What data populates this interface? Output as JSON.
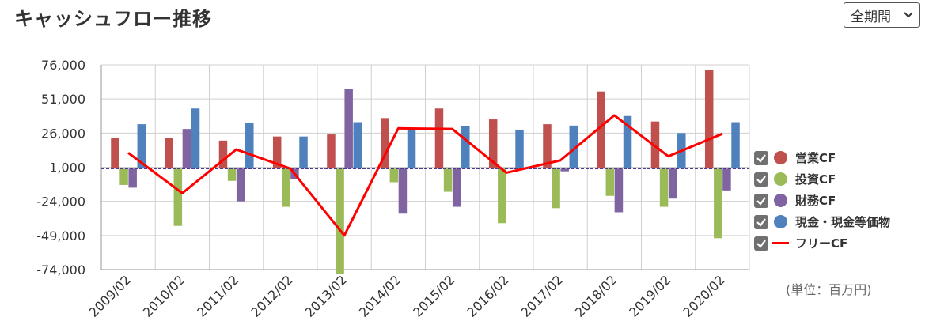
{
  "header": {
    "title": "キャッシュフロー推移"
  },
  "period_select": {
    "label": "全期間"
  },
  "unit_label": "(単位：百万円)",
  "chart_data": {
    "type": "bar",
    "title": "キャッシュフロー推移",
    "categories": [
      "2009/02",
      "2010/02",
      "2011/02",
      "2012/02",
      "2013/02",
      "2014/02",
      "2015/02",
      "2016/02",
      "2017/02",
      "2018/02",
      "2019/02",
      "2020/02"
    ],
    "series": [
      {
        "name": "営業CF",
        "kind": "bar",
        "color": "#c0504d",
        "values": [
          22500,
          22500,
          20500,
          23500,
          25000,
          37000,
          44000,
          36000,
          32500,
          56500,
          34500,
          72000
        ]
      },
      {
        "name": "投資CF",
        "kind": "bar",
        "color": "#9bbb59",
        "values": [
          -12000,
          -42000,
          -9000,
          -28000,
          -77000,
          -10000,
          -17000,
          -40000,
          -29000,
          -20000,
          -28000,
          -51000
        ]
      },
      {
        "name": "財務CF",
        "kind": "bar",
        "color": "#8064a2",
        "values": [
          -14000,
          29000,
          -24000,
          -8000,
          58500,
          -33000,
          -28000,
          0,
          -2000,
          -32000,
          -22000,
          -16000
        ]
      },
      {
        "name": "現金・現金等価物",
        "kind": "bar",
        "color": "#4f81bd",
        "values": [
          32500,
          44000,
          33500,
          23500,
          34000,
          30000,
          31000,
          28000,
          31500,
          38500,
          26000,
          34000
        ]
      },
      {
        "name": "フリーCF",
        "kind": "line",
        "color": "#ff0000",
        "values": [
          11500,
          -18000,
          14000,
          0,
          -49000,
          29500,
          29000,
          -3000,
          6000,
          39000,
          9000,
          25500
        ]
      }
    ],
    "yticks": [
      76000,
      51000,
      26000,
      1000,
      -24000,
      -49000,
      -74000
    ],
    "ytick_labels": [
      "76,000",
      "51,000",
      "26,000",
      "1,000",
      "-24,000",
      "-49,000",
      "-74,000"
    ],
    "ylim": [
      -74000,
      76000
    ],
    "zero_line": 0,
    "grid": true,
    "legend_position": "right",
    "legend_checked": [
      true,
      true,
      true,
      true,
      true
    ]
  }
}
